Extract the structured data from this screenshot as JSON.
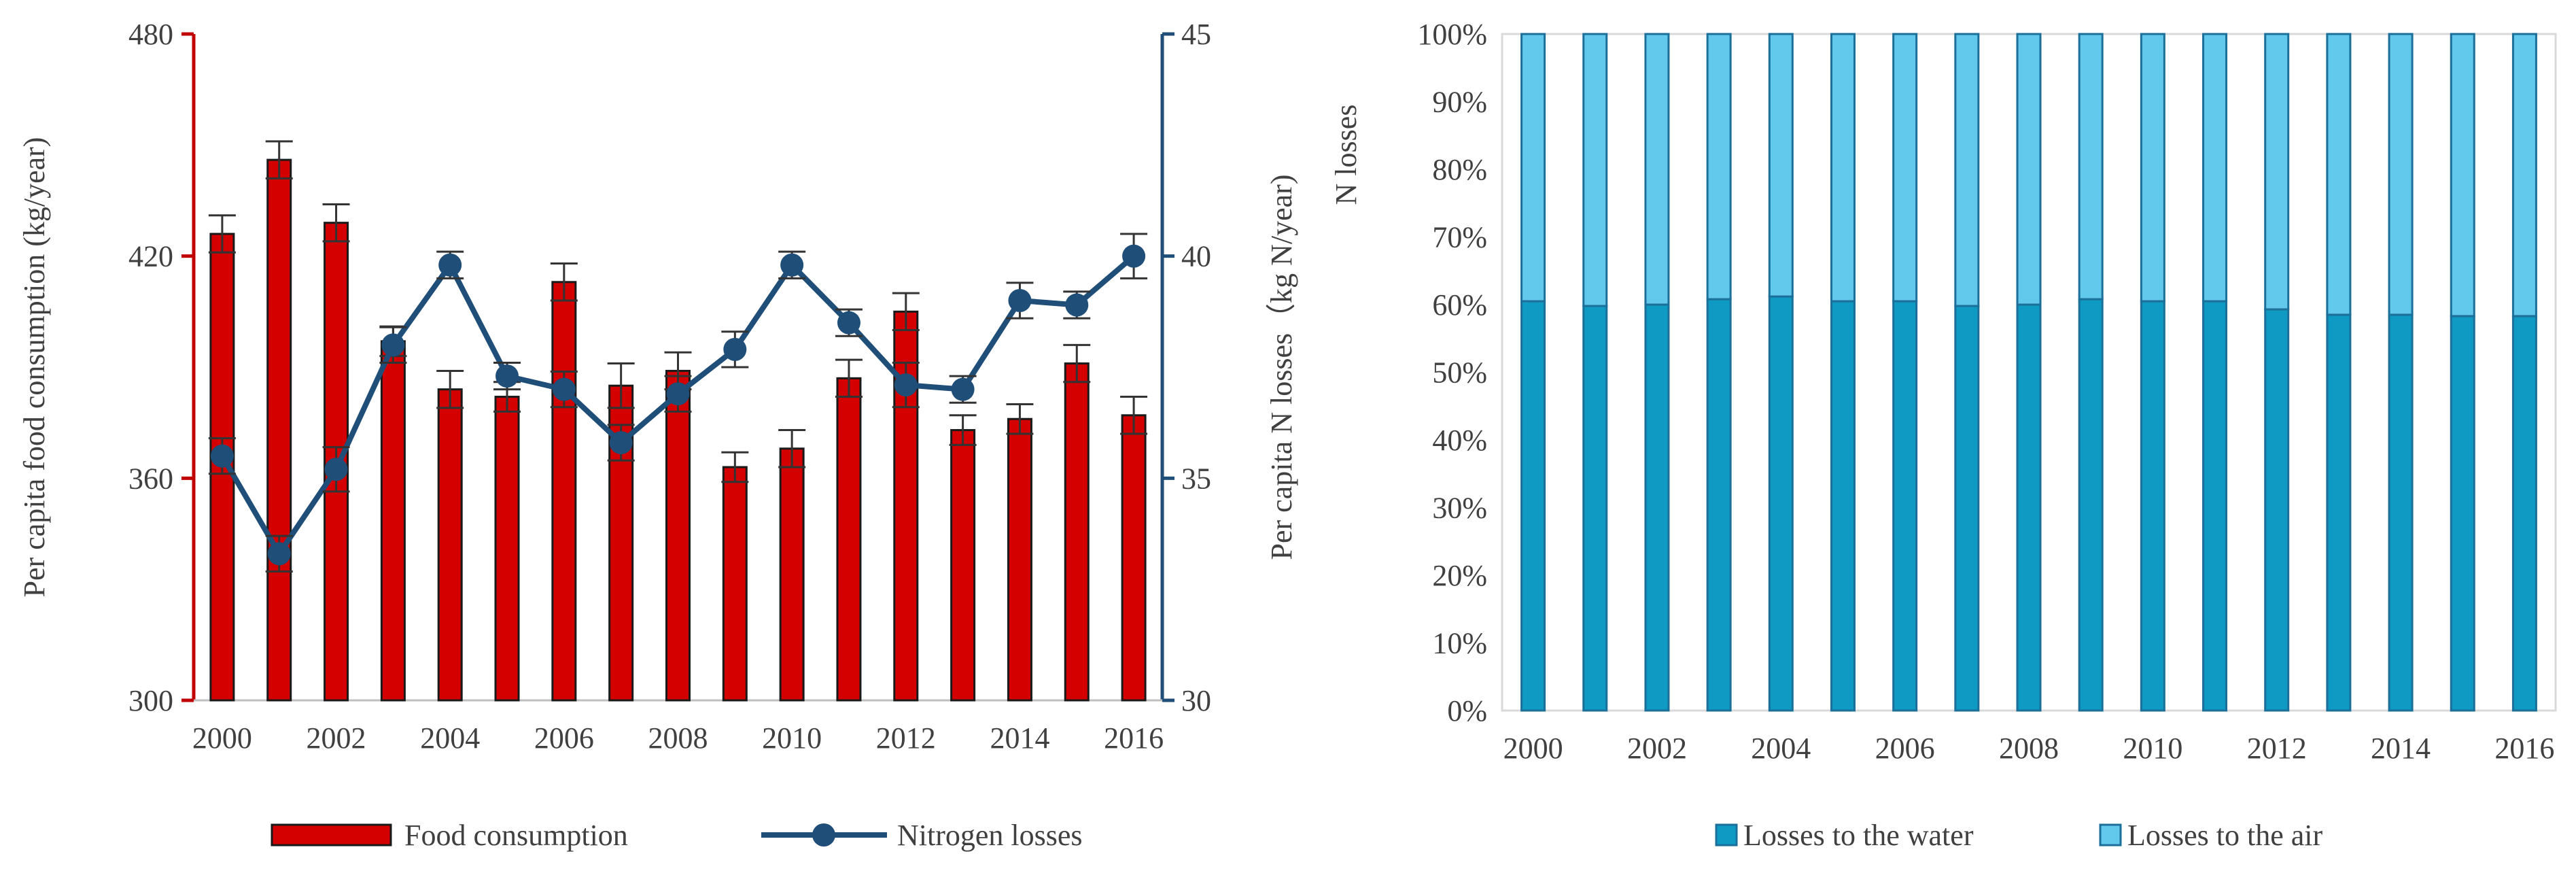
{
  "chart_data": [
    {
      "type": "bar+line",
      "title": "",
      "xlabel": "",
      "x_ticks": [
        "2000",
        "2002",
        "2004",
        "2006",
        "2008",
        "2010",
        "2012",
        "2014",
        "2016"
      ],
      "categories": [
        "2000",
        "2001",
        "2002",
        "2003",
        "2004",
        "2005",
        "2006",
        "2007",
        "2008",
        "2009",
        "2010",
        "2011",
        "2012",
        "2013",
        "2014",
        "2015",
        "2016"
      ],
      "left_axis": {
        "label": "Per capita food consumption (kg/year)",
        "ylim": [
          300,
          480
        ],
        "ticks": [
          "300",
          "360",
          "420",
          "480"
        ],
        "color": "#c00000"
      },
      "right_axis": {
        "label": "Per capita N losses（kg N/year)",
        "ylim": [
          30,
          45
        ],
        "ticks": [
          "30",
          "35",
          "40",
          "45"
        ],
        "color": "#1f4e79"
      },
      "series": [
        {
          "name": "Food consumption",
          "kind": "bar",
          "axis": "left",
          "color": "#d40000",
          "values": [
            426,
            446,
            429,
            397,
            384,
            382,
            413,
            385,
            389,
            363,
            368,
            387,
            405,
            373,
            376,
            391,
            377
          ],
          "errors": [
            5,
            5,
            5,
            4,
            5,
            4,
            5,
            6,
            5,
            4,
            5,
            5,
            5,
            4,
            4,
            5,
            5
          ]
        },
        {
          "name": "Nitrogen losses",
          "kind": "line",
          "axis": "right",
          "color": "#1f4e79",
          "values": [
            35.5,
            33.3,
            35.2,
            38.0,
            39.8,
            37.3,
            37.0,
            35.8,
            36.9,
            37.9,
            39.8,
            38.5,
            37.1,
            37.0,
            39.0,
            38.9,
            40.0
          ],
          "errors": [
            0.4,
            0.4,
            0.5,
            0.4,
            0.3,
            0.3,
            0.4,
            0.4,
            0.4,
            0.4,
            0.3,
            0.3,
            0.5,
            0.3,
            0.4,
            0.3,
            0.5
          ]
        }
      ],
      "legend": [
        "Food consumption",
        "Nitrogen losses"
      ]
    },
    {
      "type": "bar",
      "stacked": true,
      "percent": true,
      "title": "",
      "xlabel": "",
      "ylabel": "N losses",
      "ylim": [
        0,
        100
      ],
      "y_ticks": [
        "0%",
        "10%",
        "20%",
        "30%",
        "40%",
        "50%",
        "60%",
        "70%",
        "80%",
        "90%",
        "100%"
      ],
      "x_ticks": [
        "2000",
        "2002",
        "2004",
        "2006",
        "2008",
        "2010",
        "2012",
        "2014",
        "2016"
      ],
      "categories": [
        "2000",
        "2001",
        "2002",
        "2003",
        "2004",
        "2005",
        "2006",
        "2007",
        "2008",
        "2009",
        "2010",
        "2011",
        "2012",
        "2013",
        "2014",
        "2015",
        "2016"
      ],
      "series": [
        {
          "name": "Losses to the water",
          "color": "#0e9ac2",
          "values": [
            60.5,
            59.8,
            60.0,
            60.8,
            61.2,
            60.5,
            60.5,
            59.8,
            60.0,
            60.8,
            60.5,
            60.5,
            59.3,
            58.5,
            58.5,
            58.3,
            58.3
          ]
        },
        {
          "name": "Losses to the air",
          "color": "#62c9ec",
          "values": [
            39.5,
            40.2,
            40.0,
            39.2,
            38.8,
            39.5,
            39.5,
            40.2,
            40.0,
            39.2,
            39.5,
            39.5,
            40.7,
            41.5,
            41.5,
            41.7,
            41.7
          ]
        }
      ],
      "legend": [
        "Losses to the water",
        "Losses to the air"
      ]
    }
  ]
}
